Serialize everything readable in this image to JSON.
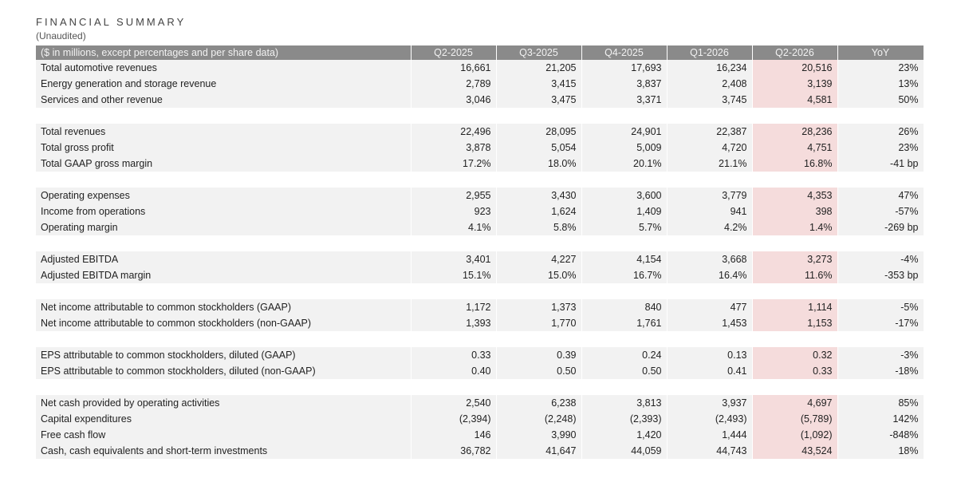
{
  "title": "FINANCIAL SUMMARY",
  "subtitle": "(Unaudited)",
  "table": {
    "header": [
      "($ in millions, except percentages and per share data)",
      "Q2-2025",
      "Q3-2025",
      "Q4-2025",
      "Q1-2026",
      "Q2-2026",
      "YoY"
    ],
    "highlight_column": "Q2-2026",
    "highlight_color": "#f5dcdc",
    "header_color": "#8a8a8a",
    "groups": [
      [
        [
          "Total automotive revenues",
          "16,661",
          "21,205",
          "17,693",
          "16,234",
          "20,516",
          "23%"
        ],
        [
          "Energy generation and storage revenue",
          "2,789",
          "3,415",
          "3,837",
          "2,408",
          "3,139",
          "13%"
        ],
        [
          "Services and other revenue",
          "3,046",
          "3,475",
          "3,371",
          "3,745",
          "4,581",
          "50%"
        ]
      ],
      [
        [
          "Total revenues",
          "22,496",
          "28,095",
          "24,901",
          "22,387",
          "28,236",
          "26%"
        ],
        [
          "Total gross profit",
          "3,878",
          "5,054",
          "5,009",
          "4,720",
          "4,751",
          "23%"
        ],
        [
          "Total GAAP gross margin",
          "17.2%",
          "18.0%",
          "20.1%",
          "21.1%",
          "16.8%",
          "-41 bp"
        ]
      ],
      [
        [
          "Operating expenses",
          "2,955",
          "3,430",
          "3,600",
          "3,779",
          "4,353",
          "47%"
        ],
        [
          "Income from operations",
          "923",
          "1,624",
          "1,409",
          "941",
          "398",
          "-57%"
        ],
        [
          "Operating margin",
          "4.1%",
          "5.8%",
          "5.7%",
          "4.2%",
          "1.4%",
          "-269 bp"
        ]
      ],
      [
        [
          "Adjusted EBITDA",
          "3,401",
          "4,227",
          "4,154",
          "3,668",
          "3,273",
          "-4%"
        ],
        [
          "Adjusted EBITDA margin",
          "15.1%",
          "15.0%",
          "16.7%",
          "16.4%",
          "11.6%",
          "-353 bp"
        ]
      ],
      [
        [
          "Net income attributable to common stockholders (GAAP)",
          "1,172",
          "1,373",
          "840",
          "477",
          "1,114",
          "-5%"
        ],
        [
          "Net income attributable to common stockholders (non-GAAP)",
          "1,393",
          "1,770",
          "1,761",
          "1,453",
          "1,153",
          "-17%"
        ]
      ],
      [
        [
          "EPS attributable to common stockholders, diluted (GAAP)",
          "0.33",
          "0.39",
          "0.24",
          "0.13",
          "0.32",
          "-3%"
        ],
        [
          "EPS attributable to common stockholders, diluted (non-GAAP)",
          "0.40",
          "0.50",
          "0.50",
          "0.41",
          "0.33",
          "-18%"
        ]
      ],
      [
        [
          "Net cash provided by operating activities",
          "2,540",
          "6,238",
          "3,813",
          "3,937",
          "4,697",
          "85%"
        ],
        [
          "Capital expenditures",
          "(2,394)",
          "(2,248)",
          "(2,393)",
          "(2,493)",
          "(5,789)",
          "142%"
        ],
        [
          "Free cash flow",
          "146",
          "3,990",
          "1,420",
          "1,444",
          "(1,092)",
          "-848%"
        ],
        [
          "Cash, cash equivalents and short-term investments",
          "36,782",
          "41,647",
          "44,059",
          "44,743",
          "43,524",
          "18%"
        ]
      ]
    ]
  }
}
